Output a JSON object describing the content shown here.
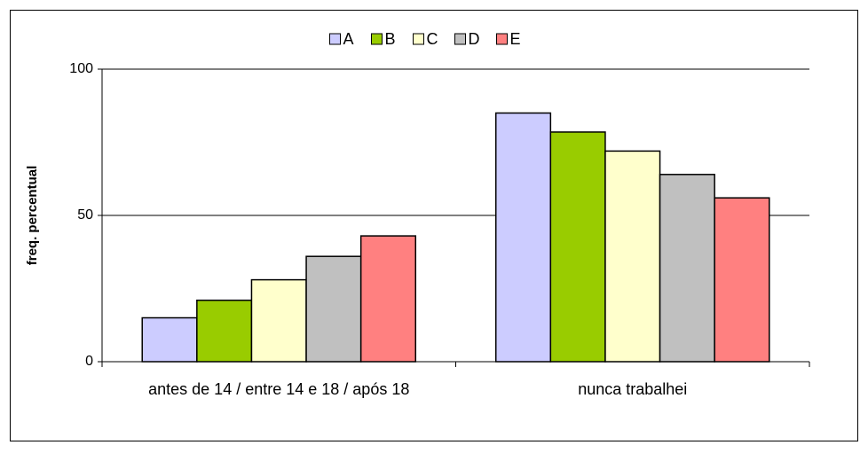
{
  "chart_data": {
    "type": "bar",
    "categories": [
      "antes de 14 / entre 14 e 18 / após 18",
      "nunca trabalhei"
    ],
    "y_label": "freq. percentual",
    "series": [
      {
        "name": "A",
        "color": "#ccccff",
        "values": [
          15,
          85
        ]
      },
      {
        "name": "B",
        "color": "#99cc00",
        "values": [
          21,
          78.5
        ]
      },
      {
        "name": "C",
        "color": "#ffffcc",
        "values": [
          28,
          72
        ]
      },
      {
        "name": "D",
        "color": "#c0c0c0",
        "values": [
          36,
          64
        ]
      },
      {
        "name": "E",
        "color": "#ff8080",
        "values": [
          43,
          56
        ]
      }
    ],
    "ylim": [
      0,
      100
    ],
    "yticks": [
      0,
      50,
      100
    ],
    "grid": true,
    "legend": "top"
  }
}
